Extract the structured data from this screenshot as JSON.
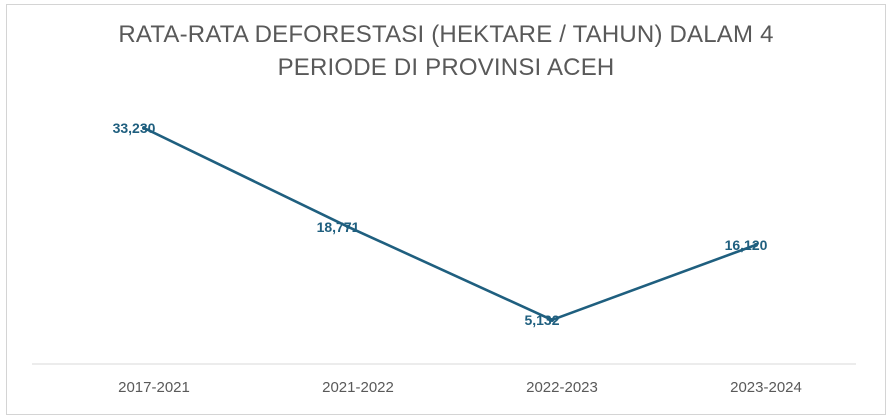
{
  "chart_data": {
    "type": "line",
    "title_lines": [
      "RATA-RATA DEFORESTASI (HEKTARE / TAHUN) DALAM 4",
      "PERIODE DI PROVINSI ACEH"
    ],
    "categories": [
      "2017-2021",
      "2021-2022",
      "2022-2023",
      "2023-2024"
    ],
    "values": [
      33230,
      18771,
      5132,
      16120
    ],
    "data_labels": [
      "33,230",
      "18,771",
      "5,132",
      "16,120"
    ],
    "line_color": "#1f5f7f",
    "axis_color": "#d9d9d9",
    "ylim": [
      0,
      36000
    ],
    "grid": false,
    "legend": "none"
  }
}
